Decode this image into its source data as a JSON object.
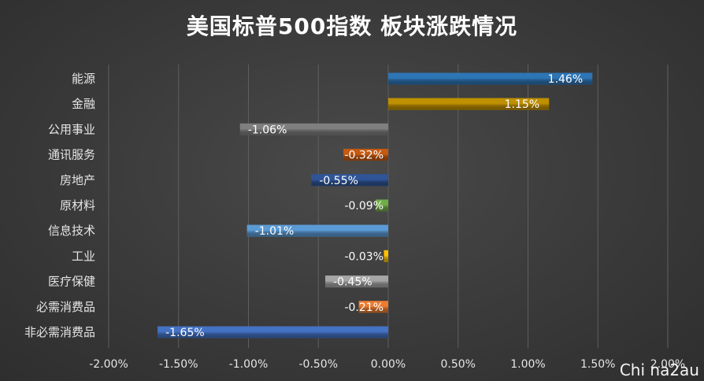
{
  "chart_data": {
    "type": "bar",
    "orientation": "horizontal",
    "title": "美国标普500指数 板块涨跌情况",
    "categories": [
      "能源",
      "金融",
      "公用事业",
      "通讯服务",
      "房地产",
      "原材料",
      "信息技术",
      "工业",
      "医疗保健",
      "必需消费品",
      "非必需消费品"
    ],
    "values": [
      1.46,
      1.15,
      -1.06,
      -0.32,
      -0.55,
      -0.09,
      -1.01,
      -0.03,
      -0.45,
      -0.21,
      -1.65
    ],
    "data_labels": [
      "1.46%",
      "1.15%",
      "-1.06%",
      "-0.32%",
      "-0.55%",
      "-0.09%",
      "-1.01%",
      "-0.03%",
      "-0.45%",
      "-0.21%",
      "-1.65%"
    ],
    "bar_colors": [
      "#2e75b6",
      "#bf9000",
      "#7f7f7f",
      "#c55a11",
      "#2f5597",
      "#70ad47",
      "#5b9bd5",
      "#ffc000",
      "#a5a5a5",
      "#ed7d31",
      "#4472c4"
    ],
    "xlim": [
      -2.0,
      2.0
    ],
    "xticks": [
      -2.0,
      -1.5,
      -1.0,
      -0.5,
      0.0,
      0.5,
      1.0,
      1.5,
      2.0
    ],
    "xtick_labels": [
      "-2.00%",
      "-1.50%",
      "-1.00%",
      "-0.50%",
      "0.00%",
      "0.50%",
      "1.00%",
      "1.50%",
      "2.00%"
    ],
    "grid": true,
    "gridline_color": "#5e5e5e",
    "background_color": "#3a3a3a",
    "legend": "none"
  },
  "watermark": "Chi na2au"
}
